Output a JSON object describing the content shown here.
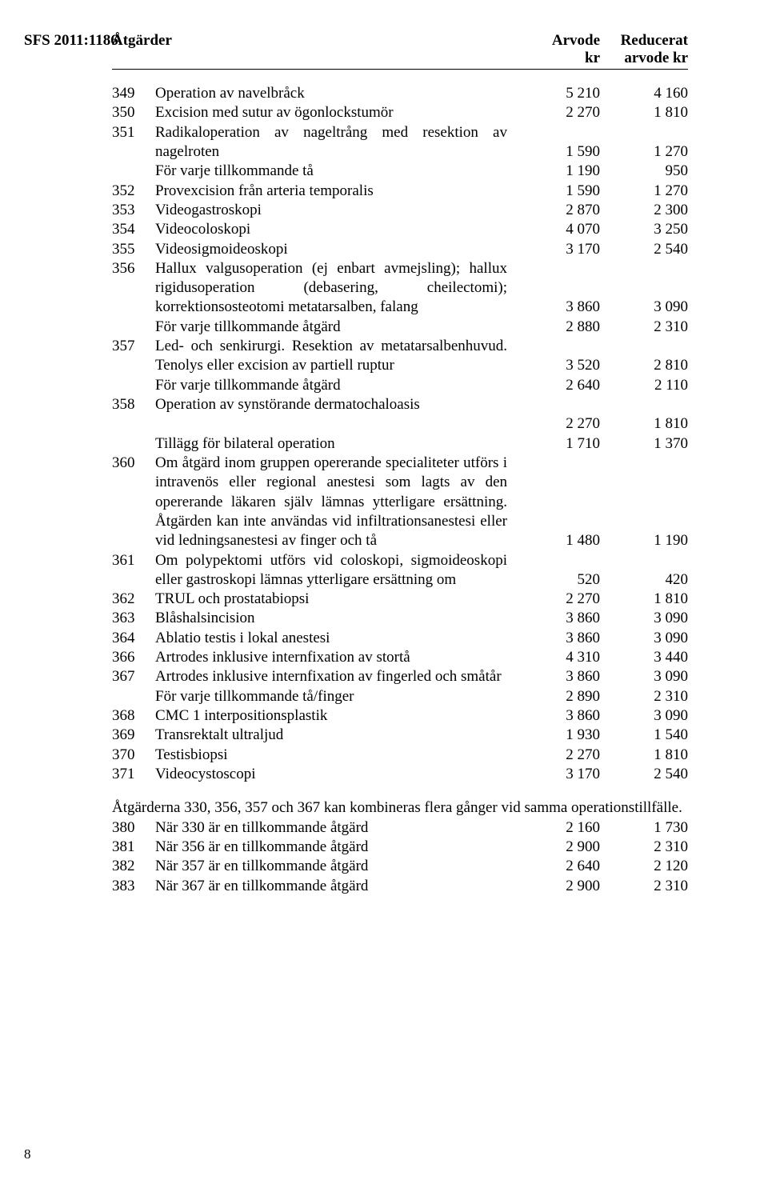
{
  "sfs": "SFS 2011:1186",
  "page_number": "8",
  "header": {
    "col1": "Åtgärder",
    "col2_line1": "Arvode",
    "col2_line2": "kr",
    "col3_line1": "Reducerat",
    "col3_line2": "arvode kr"
  },
  "rows": [
    {
      "code": "349",
      "desc": "Operation av navelbråck",
      "v1": "5 210",
      "v2": "4 160"
    },
    {
      "code": "350",
      "desc": "Excision med sutur av ögonlockstumör",
      "v1": "2 270",
      "v2": "1 810"
    },
    {
      "code": "351",
      "desc": "Radikaloperation av nageltrång med resektion av nagelroten",
      "v1": "1 590",
      "v2": "1 270"
    },
    {
      "code": "",
      "desc": "För varje tillkommande tå",
      "v1": "1 190",
      "v2": "950"
    },
    {
      "code": "352",
      "desc": "Provexcision från arteria temporalis",
      "v1": "1 590",
      "v2": "1 270"
    },
    {
      "code": "353",
      "desc": "Videogastroskopi",
      "v1": "2 870",
      "v2": "2 300"
    },
    {
      "code": "354",
      "desc": "Videocoloskopi",
      "v1": "4 070",
      "v2": "3 250"
    },
    {
      "code": "355",
      "desc": "Videosigmoideoskopi",
      "v1": "3 170",
      "v2": "2 540"
    },
    {
      "code": "356",
      "desc": "Hallux valgusoperation (ej enbart avmejsling); hallux rigidusoperation (debasering, cheilectomi); korrektionsosteotomi metatarsalben, falang",
      "v1": "3 860",
      "v2": "3 090"
    },
    {
      "code": "",
      "desc": "För varje tillkommande åtgärd",
      "v1": "2 880",
      "v2": "2 310"
    },
    {
      "code": "357",
      "desc": "Led- och senkirurgi. Resektion av metatarsalbenhuvud. Tenolys eller excision av partiell ruptur",
      "v1": "3 520",
      "v2": "2 810"
    },
    {
      "code": "",
      "desc": "För varje tillkommande åtgärd",
      "v1": "2 640",
      "v2": "2 110"
    },
    {
      "code": "358",
      "desc": "Operation av synstörande dermatochaloasis",
      "v1": "2 270",
      "v2": "1 810",
      "break": true
    },
    {
      "code": "",
      "desc": "Tillägg för bilateral operation",
      "v1": "1 710",
      "v2": "1 370"
    },
    {
      "code": "360",
      "desc": "Om åtgärd inom gruppen opererande specialiteter utförs i intravenös eller regional anestesi som lagts av den opererande läkaren själv lämnas ytterligare ersättning. Åtgärden kan inte användas vid infiltrationsanestesi eller vid ledningsanestesi av finger och tå",
      "v1": "1 480",
      "v2": "1 190"
    },
    {
      "code": "361",
      "desc": "Om polypektomi utförs vid coloskopi, sigmoideoskopi eller gastroskopi lämnas ytterligare ersättning om",
      "v1": "520",
      "v2": "420"
    },
    {
      "code": "362",
      "desc": "TRUL och prostatabiopsi",
      "v1": "2 270",
      "v2": "1 810"
    },
    {
      "code": "363",
      "desc": "Blåshalsincision",
      "v1": "3 860",
      "v2": "3 090"
    },
    {
      "code": "364",
      "desc": "Ablatio testis i lokal anestesi",
      "v1": "3 860",
      "v2": "3 090"
    },
    {
      "code": "366",
      "desc": "Artrodes inklusive internfixation av stortå",
      "v1": "4 310",
      "v2": "3 440"
    },
    {
      "code": "367",
      "desc": "Artrodes inklusive internfixation av fingerled och småtår",
      "v1": "3 860",
      "v2": "3 090"
    },
    {
      "code": "",
      "desc": "För varje tillkommande tå/finger",
      "v1": "2 890",
      "v2": "2 310"
    },
    {
      "code": "368",
      "desc": "CMC 1 interpositionsplastik",
      "v1": "3 860",
      "v2": "3 090"
    },
    {
      "code": "369",
      "desc": "Transrektalt ultraljud",
      "v1": "1 930",
      "v2": "1 540"
    },
    {
      "code": "370",
      "desc": "Testisbiopsi",
      "v1": "2 270",
      "v2": "1 810"
    },
    {
      "code": "371",
      "desc": "Videocystoscopi",
      "v1": "3 170",
      "v2": "2 540"
    }
  ],
  "para": "Åtgärderna 330, 356, 357 och 367 kan kombineras flera gånger vid samma operationstillfälle.",
  "rows2": [
    {
      "code": "380",
      "desc": "När 330 är en tillkommande åtgärd",
      "v1": "2 160",
      "v2": "1 730"
    },
    {
      "code": "381",
      "desc": "När 356 är en tillkommande åtgärd",
      "v1": "2 900",
      "v2": "2 310"
    },
    {
      "code": "382",
      "desc": "När 357 är en tillkommande åtgärd",
      "v1": "2 640",
      "v2": "2 120"
    },
    {
      "code": "383",
      "desc": "När 367 är en tillkommande åtgärd",
      "v1": "2 900",
      "v2": "2 310"
    }
  ]
}
